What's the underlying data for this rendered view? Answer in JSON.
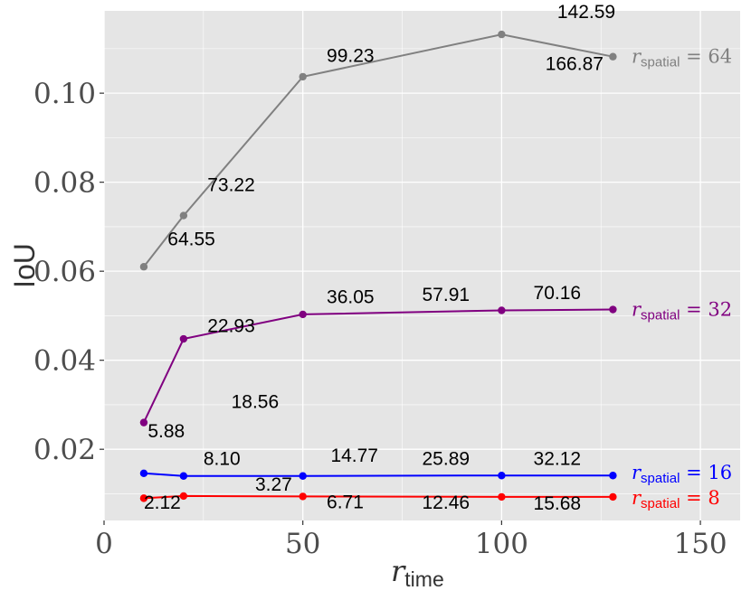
{
  "chart_data": {
    "type": "line",
    "title": "",
    "xlabel": {
      "symbol": "r",
      "subscript": "time"
    },
    "ylabel": "IoU",
    "xlim": [
      0,
      160
    ],
    "ylim": [
      0.004,
      0.1185
    ],
    "x_ticks": [
      0,
      50,
      100,
      150
    ],
    "x_tick_labels": [
      "0",
      "50",
      "100",
      "150"
    ],
    "y_ticks": [
      0.02,
      0.04,
      0.06,
      0.08,
      0.1
    ],
    "y_tick_labels": [
      "0.02",
      "0.04",
      "0.06",
      "0.08",
      "0.10"
    ],
    "grid": true,
    "legend": "none",
    "panel_background": "#e5e5e5",
    "grid_color": "#ffffff",
    "series": [
      {
        "name": "r_spatial = 64",
        "label": {
          "symbol": "r",
          "subscript": "spatial",
          "suffix": " = 64"
        },
        "color": "#808080",
        "x": [
          10,
          20,
          50,
          100,
          128
        ],
        "y": [
          0.061,
          0.0725,
          0.1037,
          0.1132,
          0.1082
        ]
      },
      {
        "name": "r_spatial = 32",
        "label": {
          "symbol": "r",
          "subscript": "spatial",
          "suffix": " = 32"
        },
        "color": "#800080",
        "x": [
          10,
          20,
          50,
          100,
          128
        ],
        "y": [
          0.026,
          0.0448,
          0.0503,
          0.0512,
          0.0514
        ]
      },
      {
        "name": "r_spatial = 16",
        "label": {
          "symbol": "r",
          "subscript": "spatial",
          "suffix": " = 16"
        },
        "color": "#0000ff",
        "x": [
          10,
          20,
          50,
          100,
          128
        ],
        "y": [
          0.0146,
          0.014,
          0.014,
          0.0141,
          0.0141
        ]
      },
      {
        "name": "r_spatial = 8",
        "label": {
          "symbol": "r",
          "subscript": "spatial",
          "suffix": " = 8"
        },
        "color": "#ff0000",
        "x": [
          10,
          20,
          50,
          100,
          128
        ],
        "y": [
          0.009,
          0.0095,
          0.0094,
          0.0093,
          0.0093
        ]
      }
    ],
    "annotations": [
      {
        "text": "142.59",
        "x": 114,
        "y": 0.1169
      },
      {
        "text": "166.87",
        "x": 111,
        "y": 0.1052
      },
      {
        "text": "99.23",
        "x": 56,
        "y": 0.107
      },
      {
        "text": "73.22",
        "x": 26,
        "y": 0.078
      },
      {
        "text": "64.55",
        "x": 16,
        "y": 0.0658
      },
      {
        "text": "70.16",
        "x": 108,
        "y": 0.0537
      },
      {
        "text": "57.91",
        "x": 80,
        "y": 0.0533
      },
      {
        "text": "36.05",
        "x": 56,
        "y": 0.0528
      },
      {
        "text": "22.93",
        "x": 26,
        "y": 0.0463
      },
      {
        "text": "18.56",
        "x": 32,
        "y": 0.0293
      },
      {
        "text": "5.88",
        "x": 11,
        "y": 0.0227
      },
      {
        "text": "8.10",
        "x": 25,
        "y": 0.0165
      },
      {
        "text": "14.77",
        "x": 57,
        "y": 0.0172
      },
      {
        "text": "25.89",
        "x": 80,
        "y": 0.0165
      },
      {
        "text": "32.12",
        "x": 108,
        "y": 0.0165
      },
      {
        "text": "3.27",
        "x": 38,
        "y": 0.0107
      },
      {
        "text": "2.12",
        "x": 10,
        "y": 0.0066
      },
      {
        "text": "6.71",
        "x": 56,
        "y": 0.0067
      },
      {
        "text": "12.46",
        "x": 80,
        "y": 0.0066
      },
      {
        "text": "15.68",
        "x": 108,
        "y": 0.0064
      }
    ]
  }
}
